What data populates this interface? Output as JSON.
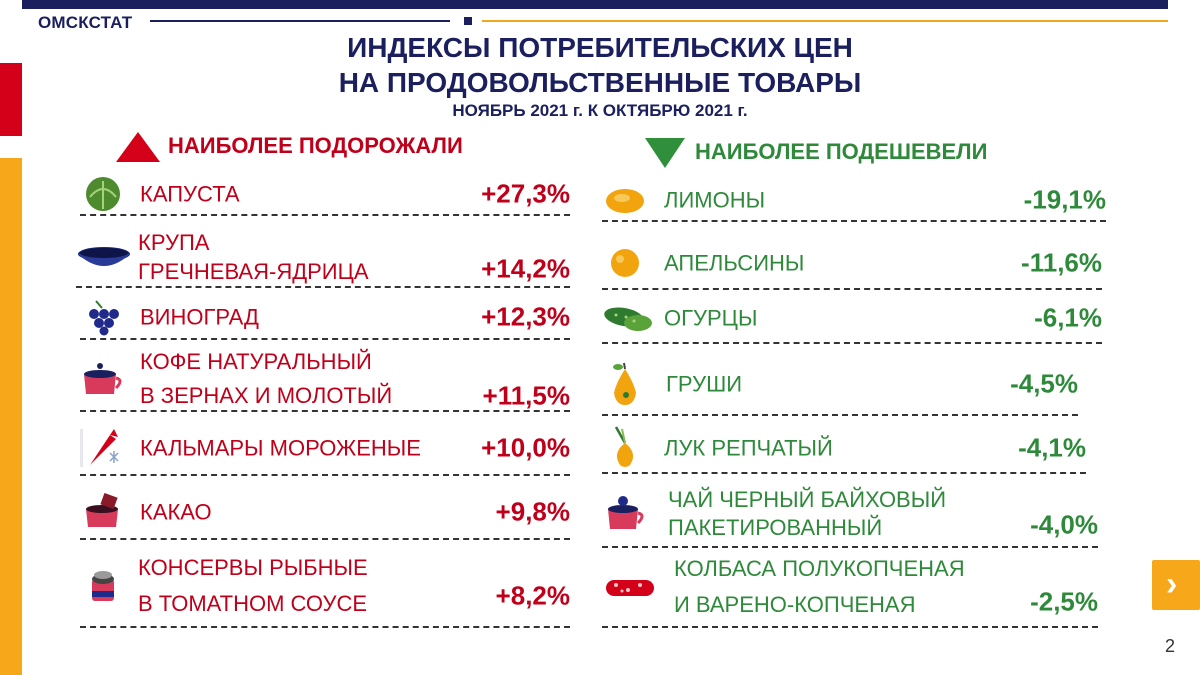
{
  "header": {
    "brand": "ОМСКСТАТ",
    "title_line1": "ИНДЕКСЫ ПОТРЕБИТЕЛЬСКИХ ЦЕН",
    "title_line2": "НА ПРОДОВОЛЬСТВЕННЫЕ ТОВАРЫ",
    "subtitle": "НОЯБРЬ 2021 г. К ОКТЯБРЮ 2021 г."
  },
  "up": {
    "heading": "НАИБОЛЕЕ ПОДОРОЖАЛИ",
    "items": [
      {
        "label": "КАПУСТА",
        "value": "+27,3%",
        "icon": "cabbage-icon"
      },
      {
        "label": "КРУПА\nГРЕЧНЕВАЯ-ЯДРИЦА",
        "value": "+14,2%",
        "icon": "bowl-icon"
      },
      {
        "label": "ВИНОГРАД",
        "value": "+12,3%",
        "icon": "grapes-icon"
      },
      {
        "label": "КОФЕ НАТУРАЛЬНЫЙ\nВ ЗЕРНАХ И МОЛОТЫЙ",
        "value": "+11,5%",
        "icon": "coffee-icon"
      },
      {
        "label": "КАЛЬМАРЫ МОРОЖЕНЫЕ",
        "value": "+10,0%",
        "icon": "squid-icon"
      },
      {
        "label": "КАКАО",
        "value": "+9,8%",
        "icon": "cocoa-icon"
      },
      {
        "label": "КОНСЕРВЫ РЫБНЫЕ\nВ ТОМАТНОМ СОУСЕ",
        "value": "+8,2%",
        "icon": "can-icon"
      }
    ]
  },
  "down": {
    "heading": "НАИБОЛЕЕ ПОДЕШЕВЕЛИ",
    "items": [
      {
        "label": "ЛИМОНЫ",
        "value": "-19,1%",
        "icon": "lemon-icon"
      },
      {
        "label": "АПЕЛЬСИНЫ",
        "value": "-11,6%",
        "icon": "orange-icon"
      },
      {
        "label": "ОГУРЦЫ",
        "value": "-6,1%",
        "icon": "cucumber-icon"
      },
      {
        "label": "ГРУШИ",
        "value": "-4,5%",
        "icon": "pear-icon"
      },
      {
        "label": "ЛУК РЕПЧАТЫЙ",
        "value": "-4,1%",
        "icon": "onion-icon"
      },
      {
        "label": "ЧАЙ ЧЕРНЫЙ БАЙХОВЫЙ\nПАКЕТИРОВАННЫЙ",
        "value": "-4,0%",
        "icon": "tea-icon"
      },
      {
        "label": "КОЛБАСА ПОЛУКОПЧЕНАЯ\nИ ВАРЕНО-КОПЧЕНАЯ",
        "value": "-2,5%",
        "icon": "sausage-icon"
      }
    ]
  },
  "nav": {
    "next_icon": "chevron-right-icon",
    "next_glyph": "›",
    "page_number": "2"
  },
  "colors": {
    "navy": "#1b1f5e",
    "red": "#c0001a",
    "green": "#2e8a3a",
    "gold": "#f6a81a"
  }
}
